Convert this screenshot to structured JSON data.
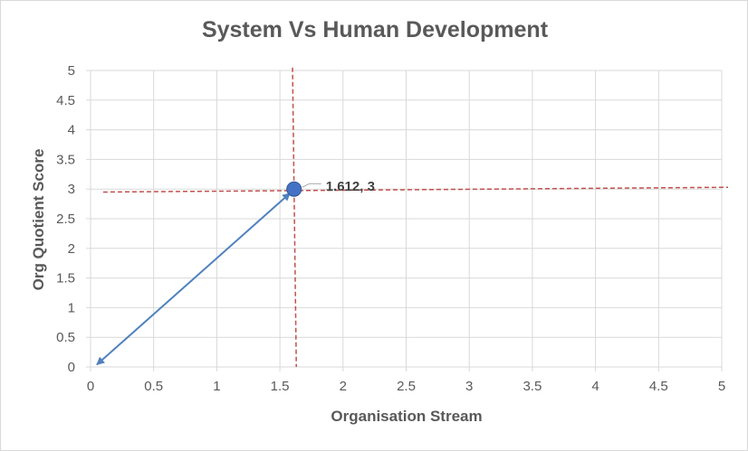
{
  "chart_data": {
    "type": "scatter",
    "title": "System Vs Human Development",
    "xlabel": "Organisation Stream",
    "ylabel": "Org Quotient Score",
    "xlim": [
      0,
      5
    ],
    "ylim": [
      0,
      5
    ],
    "xticks": [
      "0",
      "0.5",
      "1",
      "1.5",
      "2",
      "2.5",
      "3",
      "3.5",
      "4",
      "4.5",
      "5"
    ],
    "yticks": [
      "0",
      "0.5",
      "1",
      "1.5",
      "2",
      "2.5",
      "3",
      "3.5",
      "4",
      "4.5",
      "5"
    ],
    "grid": true,
    "legend": "none",
    "points": [
      {
        "x": 1.612,
        "y": 3,
        "label": "1.612, 3"
      }
    ],
    "arrow": {
      "from": [
        0.05,
        0.04
      ],
      "to": [
        1.58,
        2.93
      ]
    },
    "reference_lines": [
      {
        "orientation": "vertical",
        "from": [
          1.6,
          5.05
        ],
        "to": [
          1.63,
          0
        ]
      },
      {
        "orientation": "horizontal",
        "from": [
          0.1,
          2.95
        ],
        "to": [
          5.05,
          3.03
        ]
      }
    ],
    "colors": {
      "point": "#4472c4",
      "arrow": "#4f81bd",
      "reference": "#c0504d",
      "grid": "#d9d9d9",
      "text": "#595959"
    }
  }
}
